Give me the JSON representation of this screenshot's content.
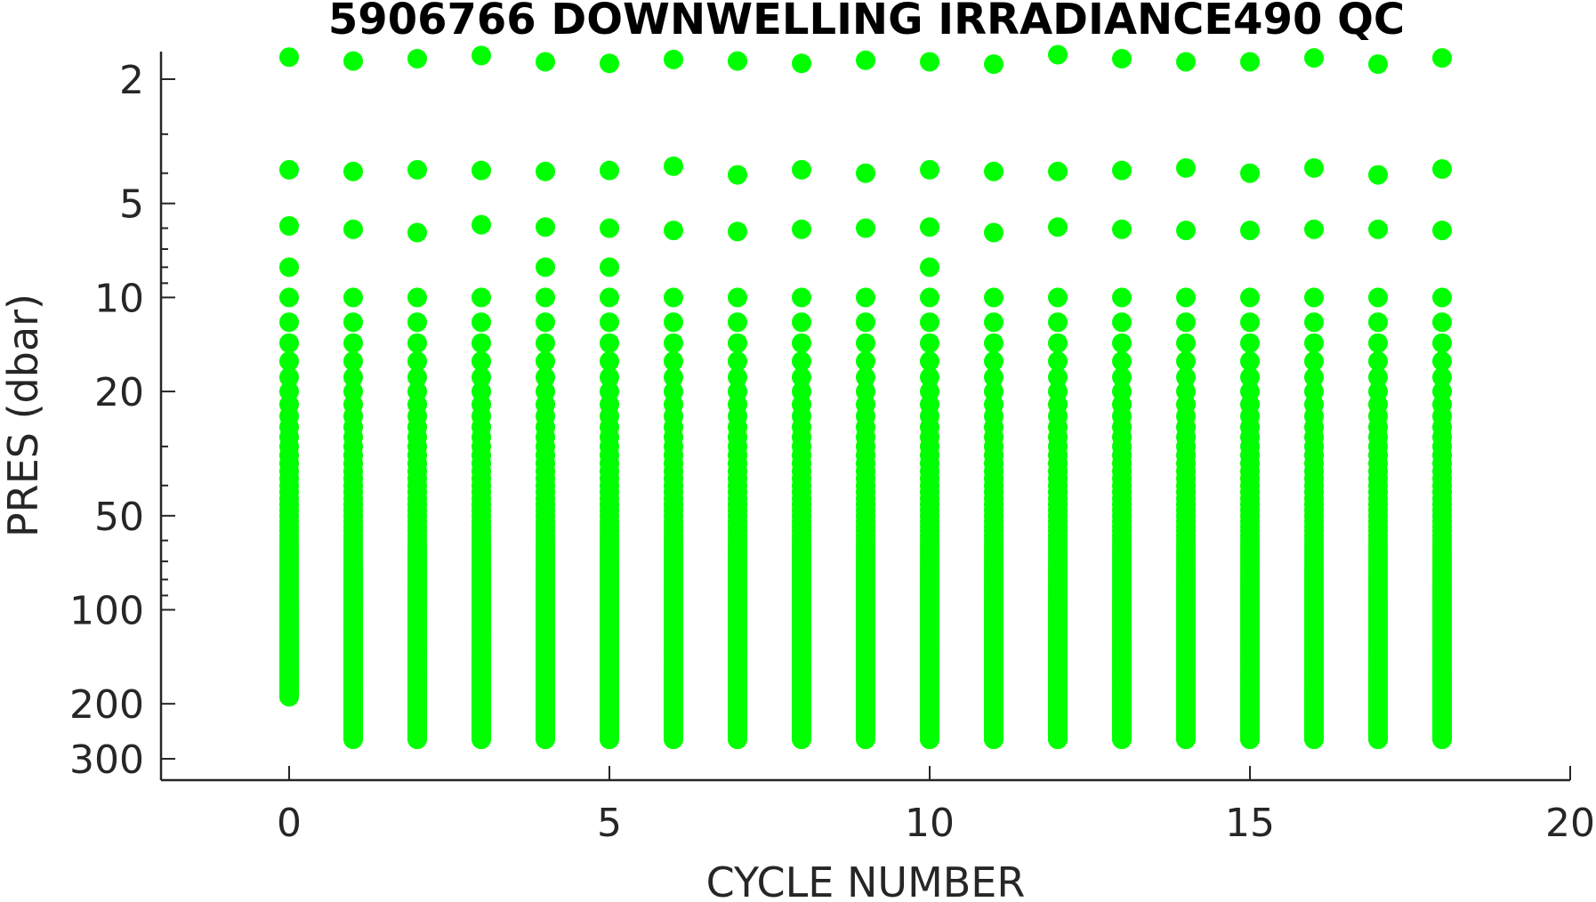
{
  "chart_data": {
    "type": "scatter",
    "title": "5906766  DOWNWELLING IRRADIANCE490 QC",
    "xlabel": "CYCLE NUMBER",
    "ylabel": "PRES (dbar)",
    "xlim": [
      -2,
      20
    ],
    "ylim": [
      1.63,
      360
    ],
    "y_scale": "log",
    "y_reversed": true,
    "grid": false,
    "marker_color": "#00ff00",
    "x_ticks": [
      0,
      5,
      10,
      15,
      20
    ],
    "x_tick_labels": [
      "0",
      "5",
      "10",
      "15",
      "20"
    ],
    "y_ticks": [
      2,
      5,
      10,
      20,
      50,
      100,
      200,
      300
    ],
    "y_tick_labels": [
      "2",
      "5",
      "10",
      "20",
      "50",
      "100",
      "200",
      "300"
    ],
    "y_minor_ticks": [
      3,
      4,
      6,
      7,
      8,
      9,
      30,
      40,
      60,
      70,
      80,
      90
    ],
    "cycles": [
      0,
      1,
      2,
      3,
      4,
      5,
      6,
      7,
      8,
      9,
      10,
      11,
      12,
      13,
      14,
      15,
      16,
      17,
      18
    ],
    "pressure_levels_dbar": [
      1.7,
      1.75,
      1.72,
      1.68,
      1.76,
      1.78,
      1.73,
      1.75,
      1.78,
      1.74,
      1.76,
      1.79,
      1.67,
      1.72,
      1.76,
      1.76,
      1.71,
      1.79,
      1.71
    ],
    "second_level_dbar": [
      3.9,
      3.95,
      3.9,
      3.92,
      3.95,
      3.92,
      3.8,
      4.05,
      3.9,
      4.0,
      3.9,
      3.95,
      3.95,
      3.92,
      3.85,
      4.0,
      3.85,
      4.05,
      3.88
    ],
    "third_level_dbar": [
      5.9,
      6.05,
      6.2,
      5.85,
      5.95,
      6.0,
      6.1,
      6.15,
      6.05,
      6.0,
      5.95,
      6.2,
      5.95,
      6.05,
      6.1,
      6.1,
      6.05,
      6.05,
      6.1
    ],
    "profile_top_dbar": [
      8,
      8.1,
      8.2,
      8.1,
      8.0,
      8.0,
      8.2,
      8.1,
      8.15,
      8.2,
      8.0,
      8.2,
      8.1,
      8.1,
      8.05,
      8.1,
      8.1,
      8.1,
      8.1
    ],
    "profile_bottom_dbar": [
      190,
      260,
      260,
      260,
      260,
      260,
      260,
      260,
      260,
      260,
      260,
      260,
      260,
      260,
      260,
      260,
      260,
      260,
      260
    ]
  }
}
